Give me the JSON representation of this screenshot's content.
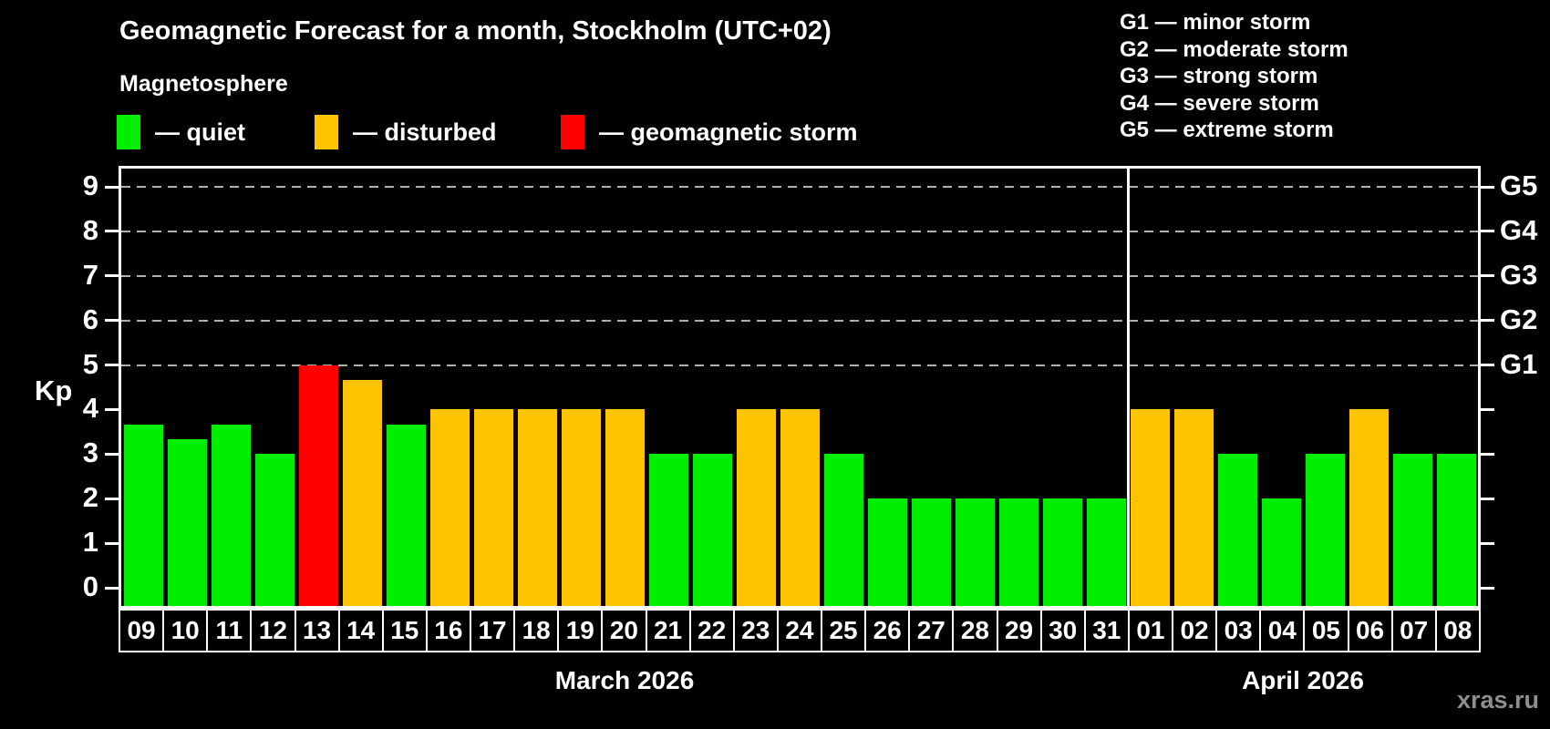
{
  "title": "Geomagnetic Forecast for a month, Stockholm (UTC+02)",
  "subtitle": "Magnetosphere",
  "legend": [
    {
      "key": "quiet",
      "label": "— quiet"
    },
    {
      "key": "disturbed",
      "label": "— disturbed"
    },
    {
      "key": "storm",
      "label": "— geomagnetic storm"
    }
  ],
  "g_legend": [
    "G1 — minor storm",
    "G2 — moderate storm",
    "G3 — strong storm",
    "G4 — severe storm",
    "G5 — extreme storm"
  ],
  "watermark": "xras.ru",
  "colors": {
    "quiet": "#00ee00",
    "disturbed": "#ffc300",
    "storm": "#ff0000",
    "grid": "#b0b0b0",
    "axis": "#ffffff",
    "text": "#ffffff",
    "watermark": "#8f8f8f",
    "background": "#000000"
  },
  "axis": {
    "left_label": "Kp",
    "left_ticks": [
      0,
      1,
      2,
      3,
      4,
      5,
      6,
      7,
      8,
      9
    ],
    "right_labels": [
      {
        "value": 5,
        "label": "G1"
      },
      {
        "value": 6,
        "label": "G2"
      },
      {
        "value": 7,
        "label": "G3"
      },
      {
        "value": 8,
        "label": "G4"
      },
      {
        "value": 9,
        "label": "G5"
      }
    ]
  },
  "months": [
    {
      "label": "March 2026",
      "start": 0,
      "count": 23
    },
    {
      "label": "April 2026",
      "start": 23,
      "count": 8
    }
  ],
  "chart_data": {
    "type": "bar",
    "title": "Geomagnetic Forecast for a month, Stockholm (UTC+02)",
    "xlabel": "",
    "ylabel": "Kp",
    "ylim": [
      0,
      9
    ],
    "grid_levels": [
      5,
      6,
      7,
      8,
      9
    ],
    "legend_position": "top",
    "categories": [
      "09",
      "10",
      "11",
      "12",
      "13",
      "14",
      "15",
      "16",
      "17",
      "18",
      "19",
      "20",
      "21",
      "22",
      "23",
      "24",
      "25",
      "26",
      "27",
      "28",
      "29",
      "30",
      "31",
      "01",
      "02",
      "03",
      "04",
      "05",
      "06",
      "07",
      "08"
    ],
    "values": [
      3.67,
      3.33,
      3.67,
      3,
      5,
      4.67,
      3.67,
      4,
      4,
      4,
      4,
      4,
      3,
      3,
      4,
      4,
      3,
      2,
      2,
      2,
      2,
      2,
      2,
      4,
      4,
      3,
      2,
      3,
      4,
      3,
      3
    ],
    "statuses": [
      "quiet",
      "quiet",
      "quiet",
      "quiet",
      "storm",
      "disturbed",
      "quiet",
      "disturbed",
      "disturbed",
      "disturbed",
      "disturbed",
      "disturbed",
      "quiet",
      "quiet",
      "disturbed",
      "disturbed",
      "quiet",
      "quiet",
      "quiet",
      "quiet",
      "quiet",
      "quiet",
      "quiet",
      "disturbed",
      "disturbed",
      "quiet",
      "quiet",
      "quiet",
      "disturbed",
      "quiet",
      "quiet"
    ]
  }
}
